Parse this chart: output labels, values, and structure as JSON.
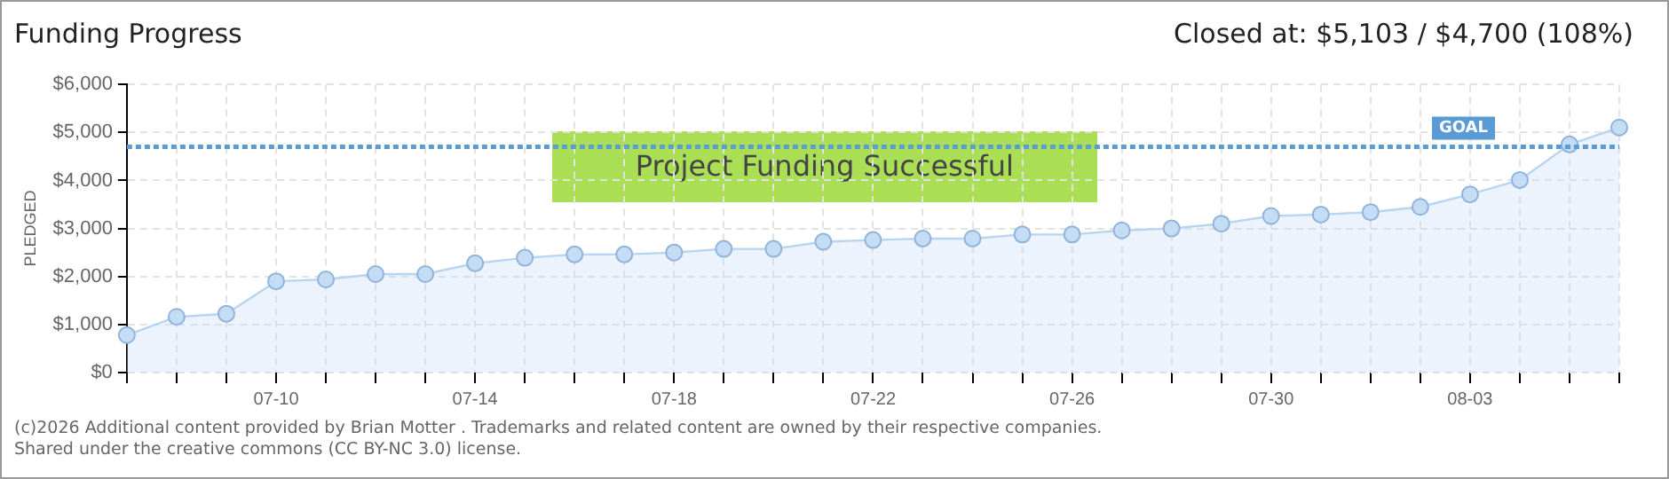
{
  "chart_data": {
    "type": "area",
    "title": "Funding Progress",
    "subtitle": "Closed at: $5,103 / $4,700 (108%)",
    "ylabel": "PLEDGED",
    "categories": [
      null,
      null,
      null,
      "07-10",
      null,
      null,
      null,
      "07-14",
      null,
      null,
      null,
      "07-18",
      null,
      null,
      null,
      "07-22",
      null,
      null,
      null,
      "07-26",
      null,
      null,
      null,
      "07-30",
      null,
      null,
      null,
      "08-03",
      null,
      null,
      null
    ],
    "series": [
      {
        "color": "#b8d4f0",
        "values": [
          780,
          1160,
          1225,
          1900,
          1940,
          2050,
          2050,
          2275,
          2390,
          2460,
          2460,
          2500,
          2575,
          2575,
          2725,
          2760,
          2790,
          2790,
          2875,
          2875,
          2960,
          3000,
          3100,
          3260,
          3290,
          3340,
          3450,
          3710,
          4010,
          4750,
          5103
        ]
      }
    ],
    "ylim": [
      0,
      6000
    ],
    "yticks": [
      {
        "value": 0,
        "label": "$0"
      },
      {
        "value": 1000,
        "label": "$1,000"
      },
      {
        "value": 2000,
        "label": "$2,000"
      },
      {
        "value": 3000,
        "label": "$3,000"
      },
      {
        "value": 4000,
        "label": "$4,000"
      },
      {
        "value": 5000,
        "label": "$5,000"
      },
      {
        "value": 6000,
        "label": "$6,000"
      }
    ],
    "ref_lines": [
      {
        "axis": "y",
        "value": 4700,
        "label": "GOAL",
        "color": "#5b9bd5",
        "line_style": "dotted"
      }
    ],
    "annotations": [
      "Project Funding Successful",
      "(c)2026 Additional content provided by Brian Motter . Trademarks and related content are owned by their respective companies.",
      "Shared under the creative commons (CC BY-NC 3.0) license."
    ],
    "grid": true,
    "legend": false,
    "marker": "circle"
  }
}
